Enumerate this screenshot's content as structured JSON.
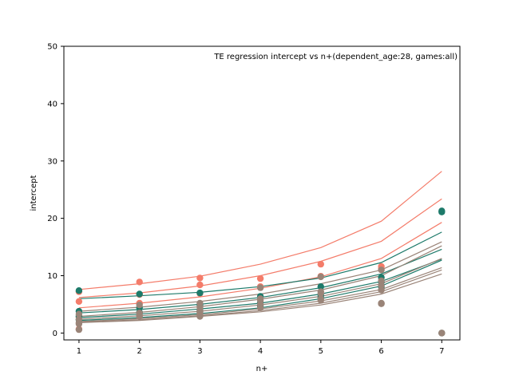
{
  "chart_data": {
    "type": "line",
    "title": "TE regression intercept vs n+(dependent_age:28, games:all)",
    "xlabel": "n+",
    "ylabel": "intercept",
    "xlim": [
      0.75,
      7.3
    ],
    "ylim": [
      -1.2,
      50
    ],
    "x_ticks": [
      1,
      2,
      3,
      4,
      5,
      6,
      7
    ],
    "y_ticks": [
      0,
      10,
      20,
      30,
      40,
      50
    ],
    "grid": false,
    "colors": {
      "salmon": "#f47c6a",
      "teal": "#1d7a6a",
      "taupe": "#9a8478"
    },
    "fit_lines": [
      {
        "color": "salmon",
        "points": [
          [
            1,
            7.6
          ],
          [
            2,
            8.6
          ],
          [
            3,
            9.9
          ],
          [
            4,
            12.0
          ],
          [
            5,
            14.9
          ],
          [
            6,
            19.5
          ],
          [
            7,
            28.2
          ]
        ]
      },
      {
        "color": "salmon",
        "points": [
          [
            1,
            6.2
          ],
          [
            2,
            7.0
          ],
          [
            3,
            8.2
          ],
          [
            4,
            10.0
          ],
          [
            5,
            12.5
          ],
          [
            6,
            16.0
          ],
          [
            7,
            23.4
          ]
        ]
      },
      {
        "color": "salmon",
        "points": [
          [
            1,
            4.4
          ],
          [
            2,
            5.2
          ],
          [
            3,
            6.3
          ],
          [
            4,
            7.8
          ],
          [
            5,
            9.8
          ],
          [
            6,
            13.0
          ],
          [
            7,
            19.3
          ]
        ]
      },
      {
        "color": "teal",
        "points": [
          [
            1,
            6.0
          ],
          [
            2,
            6.5
          ],
          [
            3,
            7.1
          ],
          [
            4,
            8.1
          ],
          [
            5,
            9.6
          ],
          [
            6,
            12.3
          ],
          [
            7,
            17.6
          ]
        ]
      },
      {
        "color": "teal",
        "points": [
          [
            1,
            3.5
          ],
          [
            2,
            4.1
          ],
          [
            3,
            5.0
          ],
          [
            4,
            6.2
          ],
          [
            5,
            7.9
          ],
          [
            6,
            10.3
          ],
          [
            7,
            14.6
          ]
        ]
      },
      {
        "color": "teal",
        "points": [
          [
            1,
            2.7
          ],
          [
            2,
            3.3
          ],
          [
            3,
            4.2
          ],
          [
            4,
            5.2
          ],
          [
            5,
            6.8
          ],
          [
            6,
            9.0
          ],
          [
            7,
            12.9
          ]
        ]
      },
      {
        "color": "teal",
        "points": [
          [
            1,
            2.2
          ],
          [
            2,
            2.7
          ],
          [
            3,
            3.4
          ],
          [
            4,
            4.4
          ],
          [
            5,
            6.0
          ],
          [
            6,
            8.2
          ],
          [
            7,
            12.7
          ]
        ]
      },
      {
        "color": "taupe",
        "points": [
          [
            1,
            3.8
          ],
          [
            2,
            4.5
          ],
          [
            3,
            5.5
          ],
          [
            4,
            6.8
          ],
          [
            5,
            8.6
          ],
          [
            6,
            11.0
          ],
          [
            7,
            15.9
          ]
        ]
      },
      {
        "color": "taupe",
        "points": [
          [
            1,
            2.9
          ],
          [
            2,
            3.6
          ],
          [
            3,
            4.6
          ],
          [
            4,
            5.9
          ],
          [
            5,
            7.5
          ],
          [
            6,
            10.0
          ],
          [
            7,
            15.2
          ]
        ]
      },
      {
        "color": "taupe",
        "points": [
          [
            1,
            2.4
          ],
          [
            2,
            3.0
          ],
          [
            3,
            3.8
          ],
          [
            4,
            4.9
          ],
          [
            5,
            6.4
          ],
          [
            6,
            8.6
          ],
          [
            7,
            13.0
          ]
        ]
      },
      {
        "color": "taupe",
        "points": [
          [
            1,
            2.0
          ],
          [
            2,
            2.5
          ],
          [
            3,
            3.2
          ],
          [
            4,
            4.2
          ],
          [
            5,
            5.6
          ],
          [
            6,
            7.6
          ],
          [
            7,
            11.4
          ]
        ]
      },
      {
        "color": "taupe",
        "points": [
          [
            1,
            1.9
          ],
          [
            2,
            2.3
          ],
          [
            3,
            3.0
          ],
          [
            4,
            3.9
          ],
          [
            5,
            5.2
          ],
          [
            6,
            7.2
          ],
          [
            7,
            11.0
          ]
        ]
      },
      {
        "color": "taupe",
        "points": [
          [
            1,
            1.8
          ],
          [
            2,
            2.2
          ],
          [
            3,
            2.9
          ],
          [
            4,
            3.7
          ],
          [
            5,
            4.9
          ],
          [
            6,
            6.8
          ],
          [
            7,
            10.3
          ]
        ]
      }
    ],
    "scatter_points": [
      {
        "color": "salmon",
        "points": [
          [
            1,
            7.2
          ],
          [
            1,
            5.5
          ],
          [
            1,
            2.8
          ],
          [
            1,
            0.7
          ],
          [
            2,
            8.9
          ],
          [
            2,
            6.7
          ],
          [
            2,
            5.2
          ],
          [
            3,
            9.6
          ],
          [
            3,
            8.4
          ],
          [
            3,
            6.9
          ],
          [
            4,
            9.5
          ],
          [
            4,
            8.1
          ],
          [
            5,
            12.0
          ],
          [
            5,
            9.9
          ],
          [
            6,
            11.6
          ],
          [
            6,
            11.2
          ],
          [
            7,
            0.0
          ]
        ]
      },
      {
        "color": "teal",
        "points": [
          [
            1,
            7.4
          ],
          [
            1,
            3.8
          ],
          [
            1,
            2.9
          ],
          [
            1,
            2.3
          ],
          [
            2,
            6.8
          ],
          [
            2,
            4.4
          ],
          [
            2,
            3.6
          ],
          [
            3,
            7.0
          ],
          [
            3,
            4.9
          ],
          [
            3,
            3.8
          ],
          [
            4,
            6.4
          ],
          [
            4,
            5.3
          ],
          [
            4,
            4.7
          ],
          [
            5,
            8.1
          ],
          [
            5,
            6.6
          ],
          [
            5,
            6.2
          ],
          [
            6,
            9.7
          ],
          [
            6,
            8.9
          ],
          [
            6,
            8.1
          ],
          [
            7,
            21.3
          ],
          [
            7,
            21.1
          ],
          [
            7,
            0.0
          ]
        ]
      },
      {
        "color": "taupe",
        "points": [
          [
            1,
            3.3
          ],
          [
            1,
            2.4
          ],
          [
            1,
            1.8
          ],
          [
            1,
            1.6
          ],
          [
            1,
            0.6
          ],
          [
            2,
            4.9
          ],
          [
            2,
            3.5
          ],
          [
            2,
            3.1
          ],
          [
            2,
            2.9
          ],
          [
            3,
            5.2
          ],
          [
            3,
            4.5
          ],
          [
            3,
            4.0
          ],
          [
            3,
            3.6
          ],
          [
            3,
            3.3
          ],
          [
            3,
            2.9
          ],
          [
            4,
            7.9
          ],
          [
            4,
            6.0
          ],
          [
            4,
            5.7
          ],
          [
            4,
            5.0
          ],
          [
            4,
            4.4
          ],
          [
            5,
            9.8
          ],
          [
            5,
            7.2
          ],
          [
            5,
            6.9
          ],
          [
            5,
            6.0
          ],
          [
            5,
            5.7
          ],
          [
            6,
            11.0
          ],
          [
            6,
            9.1
          ],
          [
            6,
            8.3
          ],
          [
            6,
            7.5
          ],
          [
            6,
            5.2
          ],
          [
            6,
            5.1
          ],
          [
            7,
            0.0
          ]
        ]
      }
    ]
  }
}
